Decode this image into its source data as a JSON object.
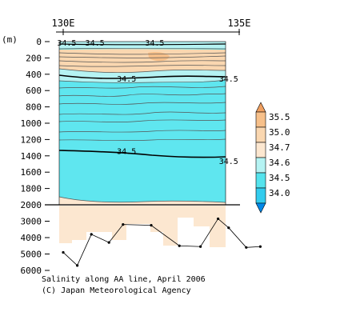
{
  "chart_data": {
    "type": "contour",
    "x_top_labels": [
      "130E",
      "135E"
    ],
    "y_unit_label": "(m)",
    "depth_ticks_upper": [
      "0",
      "200",
      "400",
      "600",
      "800",
      "1000",
      "1200",
      "1400",
      "1600",
      "1800",
      "2000"
    ],
    "depth_ticks_lower": [
      "3000",
      "4000",
      "5000",
      "6000"
    ],
    "yrange_upper": [
      0,
      2000
    ],
    "yrange_lower": [
      2000,
      6000
    ],
    "contour_labels": [
      {
        "text": "34.5",
        "lon": 130.1,
        "depth": 10
      },
      {
        "text": "34.5",
        "lon": 130.9,
        "depth": 10
      },
      {
        "text": "34.5",
        "lon": 132.6,
        "depth": 10
      },
      {
        "text": "34.5",
        "lon": 131.8,
        "depth": 450
      },
      {
        "text": "34.5",
        "lon": 134.7,
        "depth": 450
      },
      {
        "text": "34.5",
        "lon": 131.8,
        "depth": 1340
      },
      {
        "text": "34.5",
        "lon": 134.7,
        "depth": 1460
      }
    ],
    "colorbar": {
      "levels": [
        "35.5",
        "35.0",
        "34.7",
        "34.6",
        "34.5",
        "34.0"
      ],
      "colors": [
        "#f0a060",
        "#f7c08a",
        "#fad7b0",
        "#fce7d0",
        "#b5f3f3",
        "#55e3ed",
        "#33ccee",
        "#0088e8"
      ]
    },
    "bottom_depth_line": [
      {
        "lon": 130.0,
        "depth": 4900
      },
      {
        "lon": 130.4,
        "depth": 5700
      },
      {
        "lon": 130.8,
        "depth": 3800
      },
      {
        "lon": 131.3,
        "depth": 4300
      },
      {
        "lon": 131.7,
        "depth": 3200
      },
      {
        "lon": 132.5,
        "depth": 3250
      },
      {
        "lon": 133.3,
        "depth": 4500
      },
      {
        "lon": 133.9,
        "depth": 4550
      },
      {
        "lon": 134.4,
        "depth": 2850
      },
      {
        "lon": 134.7,
        "depth": 3400
      },
      {
        "lon": 135.2,
        "depth": 4600
      },
      {
        "lon": 135.6,
        "depth": 4550
      }
    ],
    "captions": {
      "line1": "Salinity along AA line, April 2006",
      "line2": "(C) Japan Meteorological Agency"
    }
  }
}
